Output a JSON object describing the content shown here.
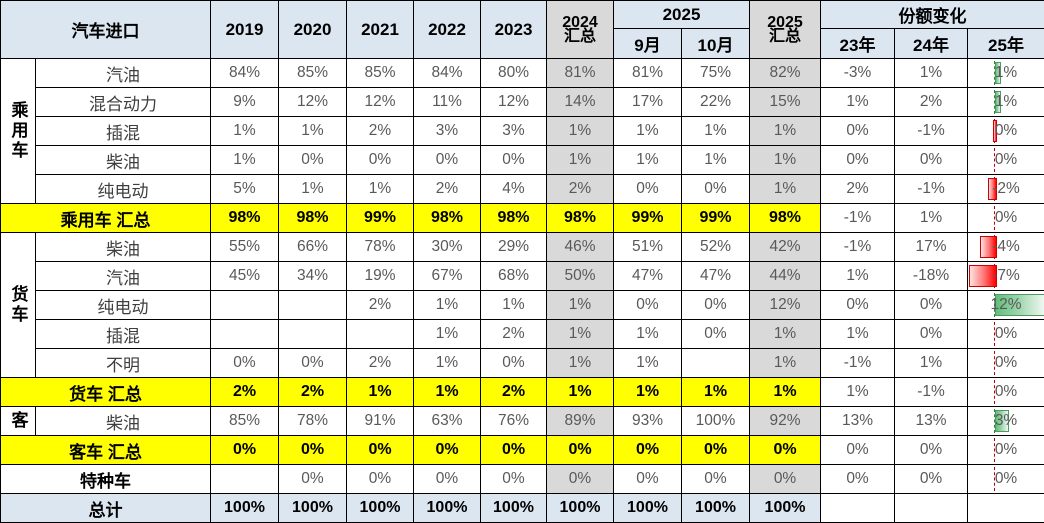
{
  "colors": {
    "header_blue": "#dce6f1",
    "summary_yellow": "#ffff00",
    "subtotal_gray": "#d9d9d9",
    "total_blue": "#dce6f1",
    "bar_negative_red": "#ff0000",
    "bar_positive_green": "#63be7b",
    "value_text_gray": "#595959"
  },
  "header": {
    "title": "汽车进口",
    "years": [
      "2019",
      "2020",
      "2021",
      "2022",
      "2023"
    ],
    "sum2024_line1": "2024",
    "sum2024_line2": "汇总",
    "y2025_group": "2025",
    "months": [
      "9月",
      "10月"
    ],
    "sum2025_line1": "2025",
    "sum2025_line2": "汇总",
    "share_change": "份额变化",
    "change_years": [
      "23年",
      "24年",
      "25年"
    ]
  },
  "columns_order": [
    "2019",
    "2020",
    "2021",
    "2022",
    "2023",
    "2024汇总",
    "2025-9月",
    "2025-10月",
    "2025汇总",
    "23年",
    "24年",
    "25年"
  ],
  "rows": [
    {
      "kind": "data",
      "group": "乘用车",
      "groupSpan": 5,
      "label": "汽油",
      "values": [
        "84%",
        "85%",
        "85%",
        "84%",
        "80%",
        "81%",
        "81%",
        "75%",
        "82%",
        "-3%",
        "1%",
        "1%"
      ],
      "bar": 1
    },
    {
      "kind": "data",
      "label": "混合动力",
      "values": [
        "9%",
        "12%",
        "12%",
        "11%",
        "12%",
        "14%",
        "17%",
        "22%",
        "15%",
        "1%",
        "2%",
        "1%"
      ],
      "bar": 1
    },
    {
      "kind": "data",
      "label": "插混",
      "values": [
        "1%",
        "1%",
        "2%",
        "3%",
        "3%",
        "1%",
        "1%",
        "1%",
        "1%",
        "0%",
        "-1%",
        "0%"
      ],
      "bar": -0.5
    },
    {
      "kind": "data",
      "label": "柴油",
      "values": [
        "1%",
        "0%",
        "0%",
        "0%",
        "0%",
        "1%",
        "1%",
        "1%",
        "1%",
        "0%",
        "0%",
        "0%"
      ],
      "bar": 0
    },
    {
      "kind": "data",
      "label": "纯电动",
      "values": [
        "5%",
        "1%",
        "1%",
        "2%",
        "4%",
        "2%",
        "0%",
        "0%",
        "1%",
        "2%",
        "-1%",
        "-2%"
      ],
      "bar": -2
    },
    {
      "kind": "summary",
      "label": "乘用车 汇总",
      "values": [
        "98%",
        "98%",
        "99%",
        "98%",
        "98%",
        "98%",
        "99%",
        "99%",
        "98%",
        "-1%",
        "1%",
        "0%"
      ],
      "bar": 0
    },
    {
      "kind": "data",
      "group": "货车",
      "groupSpan": 5,
      "label": "柴油",
      "values": [
        "55%",
        "66%",
        "78%",
        "30%",
        "29%",
        "46%",
        "51%",
        "52%",
        "42%",
        "-1%",
        "17%",
        "-4%"
      ],
      "bar": -4
    },
    {
      "kind": "data",
      "label": "汽油",
      "values": [
        "45%",
        "34%",
        "19%",
        "67%",
        "68%",
        "50%",
        "47%",
        "47%",
        "44%",
        "1%",
        "-18%",
        "-7%"
      ],
      "bar": -7
    },
    {
      "kind": "data",
      "label": "纯电动",
      "values": [
        "",
        "",
        "2%",
        "1%",
        "1%",
        "1%",
        "0%",
        "0%",
        "12%",
        "0%",
        "0%",
        "12%"
      ],
      "bar": 12
    },
    {
      "kind": "data",
      "label": "插混",
      "values": [
        "",
        "",
        "",
        "1%",
        "2%",
        "1%",
        "1%",
        "0%",
        "1%",
        "1%",
        "0%",
        "0%"
      ],
      "bar": 0
    },
    {
      "kind": "data",
      "label": "不明",
      "values": [
        "0%",
        "0%",
        "2%",
        "1%",
        "0%",
        "1%",
        "1%",
        "",
        "1%",
        "-1%",
        "1%",
        "0%"
      ],
      "bar": 0
    },
    {
      "kind": "summary",
      "label": "货车 汇总",
      "values": [
        "2%",
        "2%",
        "1%",
        "1%",
        "2%",
        "1%",
        "1%",
        "1%",
        "1%",
        "1%",
        "-1%",
        "0%"
      ],
      "bar": 0
    },
    {
      "kind": "data",
      "group": "客",
      "groupSpan": 1,
      "label": "柴油",
      "values": [
        "85%",
        "78%",
        "91%",
        "63%",
        "76%",
        "89%",
        "93%",
        "100%",
        "92%",
        "13%",
        "13%",
        "3%"
      ],
      "bar": 3
    },
    {
      "kind": "summary",
      "label": "客车 汇总",
      "values": [
        "0%",
        "0%",
        "0%",
        "0%",
        "0%",
        "0%",
        "0%",
        "0%",
        "0%",
        "0%",
        "0%",
        "0%"
      ],
      "bar": 0
    },
    {
      "kind": "special",
      "label": "特种车",
      "values": [
        "",
        "0%",
        "0%",
        "0%",
        "0%",
        "0%",
        "0%",
        "0%",
        "0%",
        "0%",
        "0%",
        "0%"
      ],
      "bar": 0
    },
    {
      "kind": "total",
      "label": "总计",
      "values": [
        "100%",
        "100%",
        "100%",
        "100%",
        "100%",
        "100%",
        "100%",
        "100%",
        "100%",
        "",
        "",
        ""
      ],
      "bar": null
    }
  ]
}
